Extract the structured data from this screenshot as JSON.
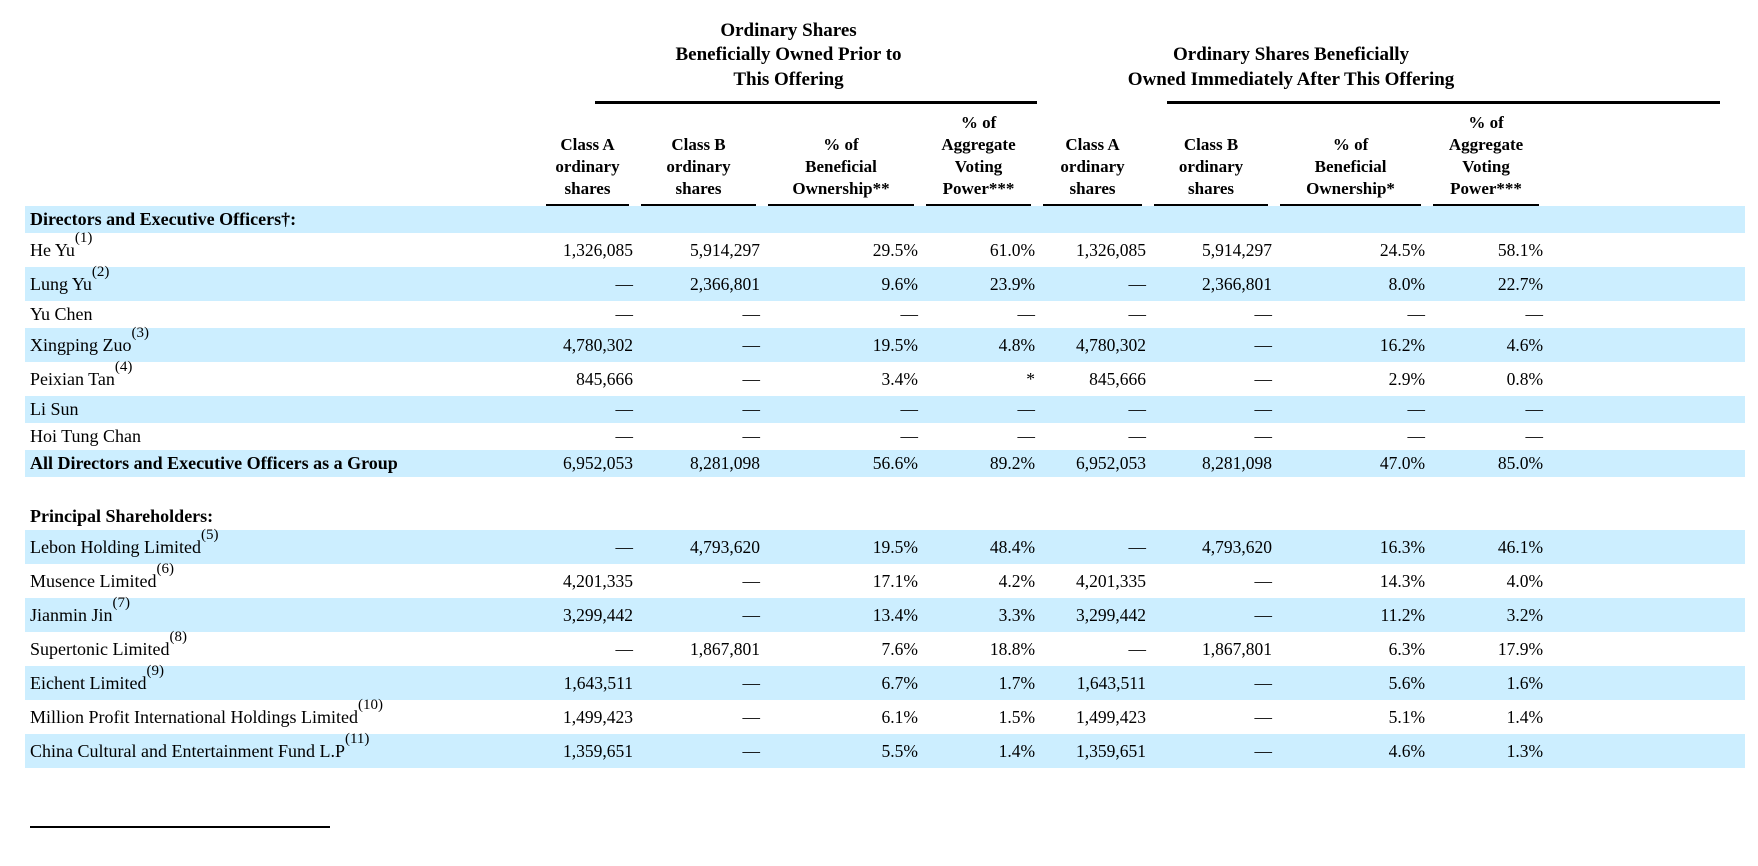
{
  "colors": {
    "stripe_blue": "#cceeff",
    "text": "#000000",
    "rule": "#000000"
  },
  "table": {
    "group_headers": [
      {
        "label": "Ordinary Shares\nBeneficially Owned Prior to\nThis Offering"
      },
      {
        "label": "Ordinary Shares Beneficially\nOwned Immediately After This Offering"
      }
    ],
    "column_headers": [
      "Class A\nordinary\nshares",
      "Class B\nordinary\nshares",
      "% of\nBeneficial\nOwnership**",
      "% of\nAggregate\nVoting\nPower***",
      "Class A\nordinary\nshares",
      "Class B\nordinary\nshares",
      "% of\nBeneficial\nOwnership*",
      "% of\nAggregate\nVoting\nPower***"
    ],
    "rows": [
      {
        "type": "section",
        "name": "Directors and Executive Officers†:",
        "shaded": true
      },
      {
        "type": "data",
        "name": "He Yu",
        "sup": "(1)",
        "shaded": false,
        "values": [
          "1,326,085",
          "5,914,297",
          "29.5%",
          "61.0%",
          "1,326,085",
          "5,914,297",
          "24.5%",
          "58.1%"
        ]
      },
      {
        "type": "data",
        "name": "Lung Yu",
        "sup": "(2)",
        "shaded": true,
        "values": [
          "—",
          "2,366,801",
          "9.6%",
          "23.9%",
          "—",
          "2,366,801",
          "8.0%",
          "22.7%"
        ]
      },
      {
        "type": "data",
        "name": "Yu Chen",
        "sup": null,
        "shaded": false,
        "values": [
          "—",
          "—",
          "—",
          "—",
          "—",
          "—",
          "—",
          "—"
        ]
      },
      {
        "type": "data",
        "name": "Xingping Zuo",
        "sup": "(3)",
        "shaded": true,
        "values": [
          "4,780,302",
          "—",
          "19.5%",
          "4.8%",
          "4,780,302",
          "—",
          "16.2%",
          "4.6%"
        ]
      },
      {
        "type": "data",
        "name": "Peixian Tan",
        "sup": "(4)",
        "shaded": false,
        "values": [
          "845,666",
          "—",
          "3.4%",
          "*",
          "845,666",
          "—",
          "2.9%",
          "0.8%"
        ]
      },
      {
        "type": "data",
        "name": "Li Sun",
        "sup": null,
        "shaded": true,
        "values": [
          "—",
          "—",
          "—",
          "—",
          "—",
          "—",
          "—",
          "—"
        ]
      },
      {
        "type": "data",
        "name": "Hoi Tung Chan",
        "sup": null,
        "shaded": false,
        "values": [
          "—",
          "—",
          "—",
          "—",
          "—",
          "—",
          "—",
          "—"
        ]
      },
      {
        "type": "data",
        "name": "All Directors and Executive Officers as a Group",
        "sup": null,
        "bold": true,
        "shaded": true,
        "values": [
          "6,952,053",
          "8,281,098",
          "56.6%",
          "89.2%",
          "6,952,053",
          "8,281,098",
          "47.0%",
          "85.0%"
        ]
      },
      {
        "type": "spacer"
      },
      {
        "type": "section",
        "name": "Principal Shareholders:",
        "shaded": false
      },
      {
        "type": "data",
        "name": "Lebon Holding Limited",
        "sup": "(5)",
        "shaded": true,
        "values": [
          "—",
          "4,793,620",
          "19.5%",
          "48.4%",
          "—",
          "4,793,620",
          "16.3%",
          "46.1%"
        ]
      },
      {
        "type": "data",
        "name": "Musence Limited",
        "sup": "(6)",
        "shaded": false,
        "values": [
          "4,201,335",
          "—",
          "17.1%",
          "4.2%",
          "4,201,335",
          "—",
          "14.3%",
          "4.0%"
        ]
      },
      {
        "type": "data",
        "name": "Jianmin Jin",
        "sup": "(7)",
        "shaded": true,
        "values": [
          "3,299,442",
          "—",
          "13.4%",
          "3.3%",
          "3,299,442",
          "—",
          "11.2%",
          "3.2%"
        ]
      },
      {
        "type": "data",
        "name": "Supertonic Limited",
        "sup": "(8)",
        "shaded": false,
        "values": [
          "—",
          "1,867,801",
          "7.6%",
          "18.8%",
          "—",
          "1,867,801",
          "6.3%",
          "17.9%"
        ]
      },
      {
        "type": "data",
        "name": "Eichent Limited",
        "sup": "(9)",
        "shaded": true,
        "values": [
          "1,643,511",
          "—",
          "6.7%",
          "1.7%",
          "1,643,511",
          "—",
          "5.6%",
          "1.6%"
        ]
      },
      {
        "type": "data",
        "name": "Million Profit International Holdings Limited",
        "sup": "(10)",
        "shaded": false,
        "values": [
          "1,499,423",
          "—",
          "6.1%",
          "1.5%",
          "1,499,423",
          "—",
          "5.1%",
          "1.4%"
        ]
      },
      {
        "type": "data",
        "name": "China Cultural and Entertainment Fund L.P",
        "sup": "(11)",
        "shaded": true,
        "values": [
          "1,359,651",
          "—",
          "5.5%",
          "1.4%",
          "1,359,651",
          "—",
          "4.6%",
          "1.3%"
        ]
      }
    ]
  }
}
